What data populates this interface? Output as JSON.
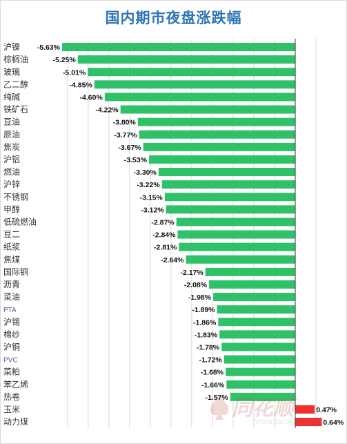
{
  "chart_data": {
    "type": "bar",
    "orientation": "horizontal",
    "title": "国内期市夜盘涨跌幅",
    "unit": "%",
    "xlim": [
      -5.63,
      0.64
    ],
    "grid": true,
    "categories": [
      "沪镍",
      "棕榈油",
      "玻璃",
      "乙二醇",
      "纯碱",
      "铁矿石",
      "豆油",
      "原油",
      "焦炭",
      "沪铝",
      "燃油",
      "沪锌",
      "不锈钢",
      "甲醇",
      "低硫燃油",
      "豆二",
      "纸浆",
      "焦煤",
      "国际铜",
      "沥青",
      "菜油",
      "PTA",
      "沪锡",
      "棉纱",
      "沪铜",
      "PVC",
      "菜粕",
      "苯乙烯",
      "热卷",
      "玉米",
      "动力煤"
    ],
    "values": [
      -5.63,
      -5.25,
      -5.01,
      -4.85,
      -4.6,
      -4.22,
      -3.8,
      -3.77,
      -3.67,
      -3.53,
      -3.3,
      -3.22,
      -3.15,
      -3.12,
      -2.87,
      -2.84,
      -2.81,
      -2.64,
      -2.17,
      -2.08,
      -1.98,
      -1.89,
      -1.86,
      -1.83,
      -1.78,
      -1.72,
      -1.68,
      -1.66,
      -1.57,
      0.47,
      0.64
    ],
    "labels": [
      "-5.63%",
      "-5.25%",
      "-5.01%",
      "-4.85%",
      "-4.60%",
      "-4.22%",
      "-3.80%",
      "-3.77%",
      "-3.67%",
      "-3.53%",
      "-3.30%",
      "-3.22%",
      "-3.15%",
      "-3.12%",
      "-2.87%",
      "-2.84%",
      "-2.81%",
      "-2.64%",
      "-2.17%",
      "-2.08%",
      "-1.98%",
      "-1.89%",
      "-1.86%",
      "-1.83%",
      "-1.78%",
      "-1.72%",
      "-1.68%",
      "-1.66%",
      "-1.57%",
      "0.47%",
      "0.64%"
    ],
    "colors": {
      "negative": "#2ec167",
      "positive": "#f0302d"
    }
  },
  "watermark": {
    "brand": "同花顺",
    "url": "WWW.10JQKA.COM.CN"
  }
}
